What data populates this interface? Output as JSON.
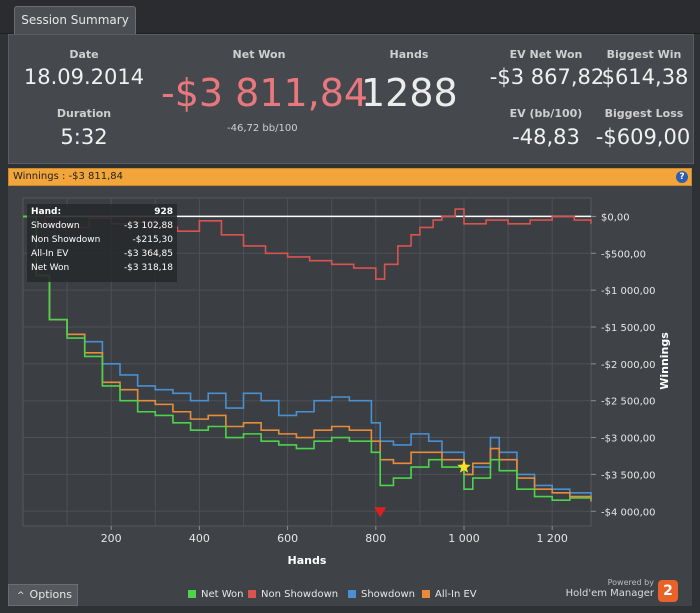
{
  "tab": {
    "label": "Session Summary"
  },
  "stats": {
    "date_label": "Date",
    "date_value": "18.09.2014",
    "duration_label": "Duration",
    "duration_value": "5:32",
    "netwon_label": "Net Won",
    "netwon_value": "-$3 811,84",
    "netwon_sub": "-46,72 bb/100",
    "hands_label": "Hands",
    "hands_value": "1288",
    "ev_net_won_label": "EV Net Won",
    "ev_net_won_value": "-$3 867,82",
    "ev_bb_label": "EV (bb/100)",
    "ev_bb_value": "-48,83",
    "biggest_win_label": "Biggest Win",
    "biggest_win_value": "$614,38",
    "biggest_loss_label": "Biggest Loss",
    "biggest_loss_value": "-$609,00"
  },
  "winnings_bar": {
    "text": "Winnings : -$3 811,84",
    "help": "?"
  },
  "tooltip": {
    "rows": [
      {
        "k": "Hand:",
        "v": "928"
      },
      {
        "k": "Showdown",
        "v": "-$3 102,88"
      },
      {
        "k": "Non Showdown",
        "v": "-$215,30"
      },
      {
        "k": "All-In EV",
        "v": "-$3 364,85"
      },
      {
        "k": "Net Won",
        "v": "-$3 318,18"
      }
    ]
  },
  "options": {
    "label": "Options",
    "chevron": "^"
  },
  "powered": {
    "line1": "Powered by",
    "line2": "Hold'em Manager",
    "badge": "2"
  },
  "chart_data": {
    "type": "line",
    "xlabel": "Hands",
    "ylabel": "Winnings",
    "xlim": [
      0,
      1288
    ],
    "ylim": [
      -4200,
      250
    ],
    "xticks": [
      200,
      400,
      600,
      800,
      1000,
      1200
    ],
    "xtick_labels": [
      "200",
      "400",
      "600",
      "800",
      "1 000",
      "1 200"
    ],
    "yticks": [
      0,
      -500,
      -1000,
      -1500,
      -2000,
      -2500,
      -3000,
      -3500,
      -4000
    ],
    "ytick_labels": [
      "$0,00",
      "-$500,00",
      "-$1 000,00",
      "-$1 500,00",
      "-$2 000,00",
      "-$2 500,00",
      "-$3 000,00",
      "-$3 500,00",
      "-$4 000,00"
    ],
    "series": [
      {
        "name": "Non Showdown",
        "color": "#d9534f",
        "x": [
          0,
          50,
          100,
          150,
          200,
          250,
          300,
          350,
          400,
          450,
          500,
          550,
          600,
          650,
          700,
          750,
          800,
          820,
          850,
          880,
          900,
          930,
          950,
          980,
          1000,
          1050,
          1100,
          1150,
          1200,
          1250,
          1288
        ],
        "y": [
          0,
          -100,
          -150,
          -20,
          -100,
          -80,
          -150,
          -200,
          -60,
          -250,
          -400,
          -500,
          -550,
          -600,
          -650,
          -700,
          -850,
          -650,
          -400,
          -250,
          -150,
          -50,
          0,
          100,
          -100,
          -50,
          -100,
          -50,
          0,
          -50,
          -100
        ]
      },
      {
        "name": "Showdown",
        "color": "#4a8fd0",
        "x": [
          0,
          30,
          60,
          100,
          140,
          180,
          220,
          260,
          300,
          340,
          380,
          420,
          460,
          500,
          540,
          580,
          620,
          660,
          700,
          740,
          790,
          810,
          840,
          880,
          920,
          950,
          1000,
          1020,
          1060,
          1080,
          1120,
          1160,
          1200,
          1240,
          1288
        ],
        "y": [
          0,
          -800,
          -1400,
          -1600,
          -1700,
          -2000,
          -2150,
          -2300,
          -2350,
          -2400,
          -2500,
          -2400,
          -2600,
          -2400,
          -2500,
          -2700,
          -2650,
          -2500,
          -2450,
          -2500,
          -2800,
          -3050,
          -3100,
          -2950,
          -3050,
          -3200,
          -3500,
          -3400,
          -3000,
          -3200,
          -3500,
          -3650,
          -3700,
          -3750,
          -3800
        ]
      },
      {
        "name": "All-In EV",
        "color": "#e88c3a",
        "x": [
          0,
          30,
          60,
          100,
          140,
          180,
          220,
          260,
          300,
          340,
          380,
          420,
          460,
          500,
          540,
          580,
          620,
          660,
          700,
          740,
          790,
          810,
          840,
          880,
          920,
          950,
          1000,
          1020,
          1060,
          1080,
          1120,
          1160,
          1200,
          1240,
          1288
        ],
        "y": [
          0,
          -800,
          -1400,
          -1600,
          -1850,
          -2250,
          -2350,
          -2500,
          -2550,
          -2650,
          -2750,
          -2700,
          -2850,
          -2800,
          -2900,
          -2950,
          -3000,
          -2900,
          -2850,
          -2900,
          -3050,
          -3300,
          -3350,
          -3200,
          -3200,
          -3300,
          -3500,
          -3350,
          -3150,
          -3300,
          -3550,
          -3700,
          -3750,
          -3800,
          -3868
        ]
      },
      {
        "name": "Net Won",
        "color": "#4cd44c",
        "x": [
          0,
          30,
          60,
          100,
          140,
          180,
          220,
          260,
          300,
          340,
          380,
          420,
          460,
          500,
          540,
          580,
          620,
          660,
          700,
          740,
          790,
          810,
          840,
          880,
          920,
          950,
          1000,
          1020,
          1060,
          1080,
          1120,
          1160,
          1200,
          1240,
          1288
        ],
        "y": [
          0,
          -800,
          -1400,
          -1650,
          -1900,
          -2300,
          -2500,
          -2650,
          -2700,
          -2800,
          -2900,
          -2850,
          -3000,
          -2950,
          -3050,
          -3100,
          -3150,
          -3050,
          -3000,
          -3050,
          -3200,
          -3650,
          -3550,
          -3400,
          -3300,
          -3400,
          -3700,
          -3550,
          -3300,
          -3450,
          -3700,
          -3800,
          -3850,
          -3820,
          -3812
        ]
      }
    ],
    "legend": {
      "placement": "bottom",
      "entries": [
        {
          "name": "Net Won",
          "color": "#4cd44c"
        },
        {
          "name": "Non Showdown",
          "color": "#d9534f"
        },
        {
          "name": "Showdown",
          "color": "#4a8fd0"
        },
        {
          "name": "All-In EV",
          "color": "#e88c3a"
        }
      ]
    },
    "markers": [
      {
        "type": "min-triangle",
        "x": 810,
        "y": -4000,
        "color": "#e02020"
      },
      {
        "type": "star",
        "x": 1000,
        "y": -3400,
        "color": "#f5e12a"
      }
    ]
  }
}
